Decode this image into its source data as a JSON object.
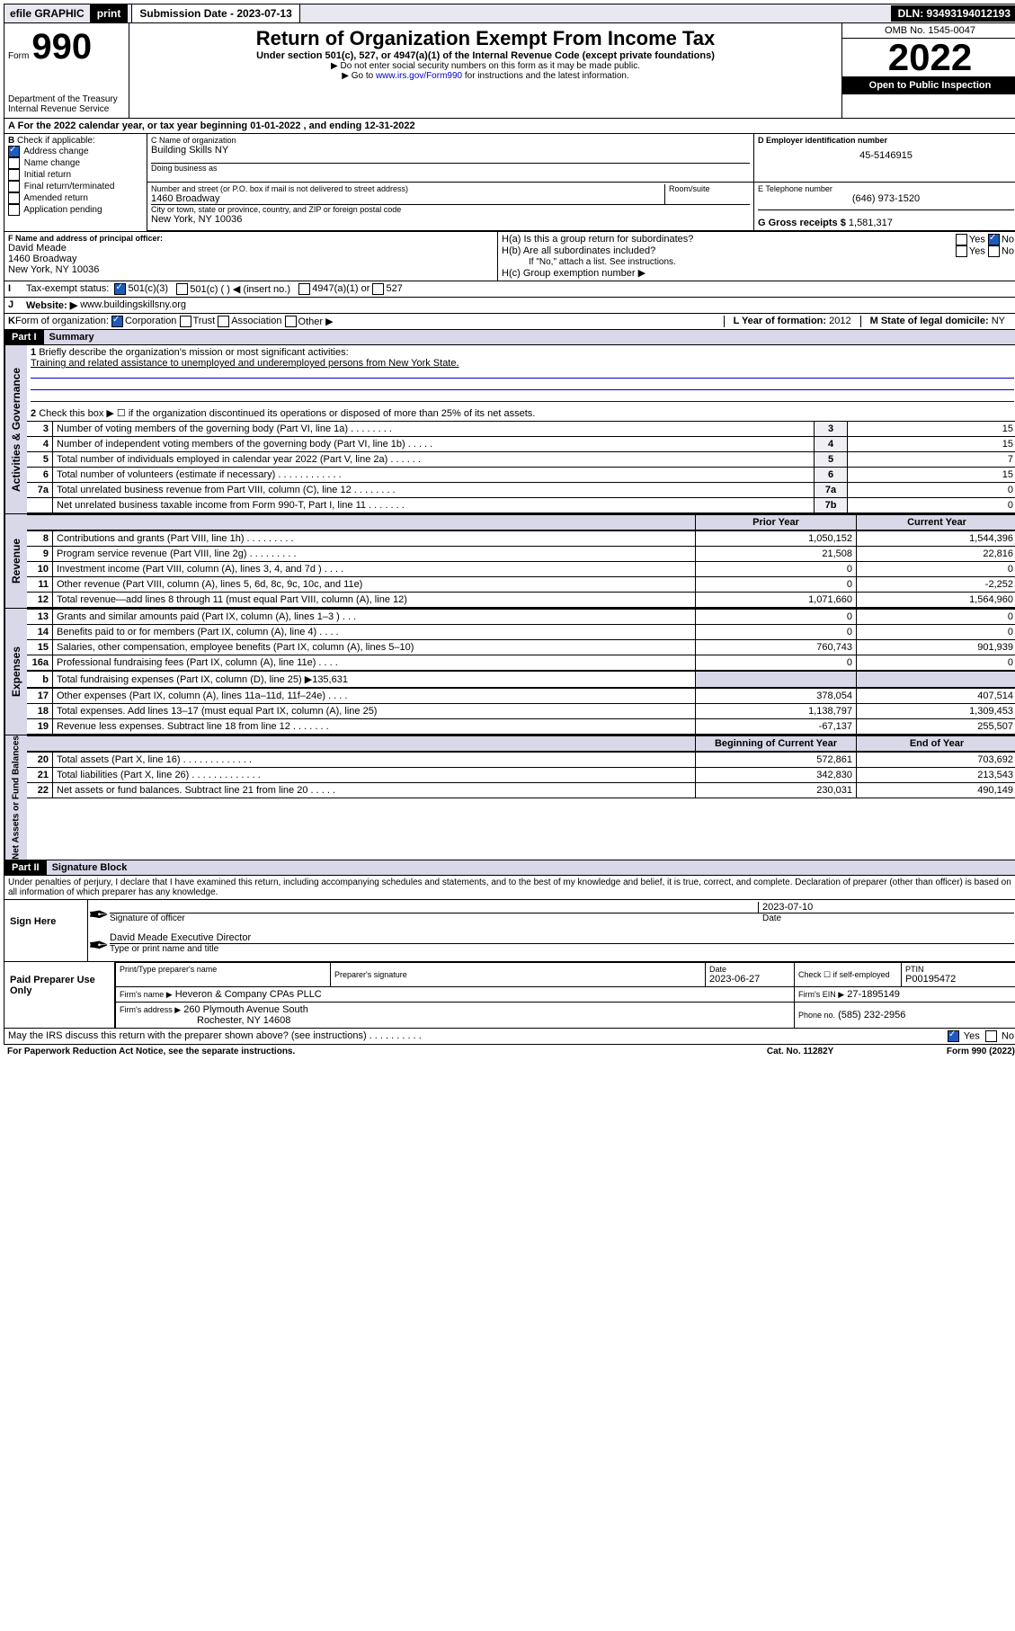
{
  "topbar": {
    "efile": "efile GRAPHIC",
    "print": "print",
    "subdate_label": "Submission Date - 2023-07-13",
    "dln_label": "DLN: 93493194012193"
  },
  "header": {
    "form_prefix": "Form",
    "form_no": "990",
    "title": "Return of Organization Exempt From Income Tax",
    "sub1": "Under section 501(c), 527, or 4947(a)(1) of the Internal Revenue Code (except private foundations)",
    "sub2": "▶ Do not enter social security numbers on this form as it may be made public.",
    "sub3_pre": "▶ Go to ",
    "sub3_link": "www.irs.gov/Form990",
    "sub3_post": " for instructions and the latest information.",
    "dept": "Department of the Treasury",
    "irs": "Internal Revenue Service",
    "omb": "OMB No. 1545-0047",
    "year": "2022",
    "open": "Open to Public Inspection"
  },
  "line_a": "For the 2022 calendar year, or tax year beginning 01-01-2022    , and ending 12-31-2022",
  "b_checks": {
    "title": "Check if applicable:",
    "addr": "Address change",
    "name": "Name change",
    "init": "Initial return",
    "final": "Final return/terminated",
    "amend": "Amended return",
    "app": "Application pending"
  },
  "c": {
    "label": "C Name of organization",
    "org": "Building Skills NY",
    "dba": "Doing business as",
    "addr_label": "Number and street (or P.O. box if mail is not delivered to street address)",
    "room": "Room/suite",
    "addr": "1460 Broadway",
    "city_label": "City or town, state or province, country, and ZIP or foreign postal code",
    "city": "New York, NY  10036"
  },
  "d": {
    "label": "D Employer identification number",
    "ein": "45-5146915"
  },
  "e": {
    "label": "E Telephone number",
    "phone": "(646) 973-1520"
  },
  "g": {
    "label": "G Gross receipts $",
    "amt": "1,581,317"
  },
  "f": {
    "label": "F  Name and address of principal officer:",
    "name": "David Meade",
    "addr1": "1460 Broadway",
    "addr2": "New York, NY  10036"
  },
  "h": {
    "a": "H(a)  Is this a group return for subordinates?",
    "b": "H(b)  Are all subordinates included?",
    "b_note": "If \"No,\" attach a list. See instructions.",
    "c": "H(c)  Group exemption number ▶",
    "yes": "Yes",
    "no": "No"
  },
  "i": {
    "label": "Tax-exempt status:",
    "c3": "501(c)(3)",
    "c": "501(c) (  ) ◀ (insert no.)",
    "a1": "4947(a)(1) or",
    "s527": "527"
  },
  "j": {
    "label": "Website: ▶",
    "url": "www.buildingskillsny.org"
  },
  "k": {
    "label": "Form of organization:",
    "corp": "Corporation",
    "trust": "Trust",
    "assoc": "Association",
    "other": "Other ▶"
  },
  "l": {
    "label": "L Year of formation:",
    "val": "2012"
  },
  "m": {
    "label": "M State of legal domicile:",
    "val": "NY"
  },
  "part1": {
    "hdr": "Part I",
    "title": "Summary",
    "l1_label": "Briefly describe the organization's mission or most significant activities:",
    "l1_text": "Training and related assistance to unemployed and underemployed persons from New York State.",
    "l2": "Check this box ▶ ☐  if the organization discontinued its operations or disposed of more than 25% of its net assets.",
    "rows_gov": [
      {
        "n": "3",
        "d": "Number of voting members of the governing body (Part VI, line 1a)   .    .    .    .    .    .    .    .",
        "i": "3",
        "v": "15"
      },
      {
        "n": "4",
        "d": "Number of independent voting members of the governing body (Part VI, line 1b)   .    .    .    .    .",
        "i": "4",
        "v": "15"
      },
      {
        "n": "5",
        "d": "Total number of individuals employed in calendar year 2022 (Part V, line 2a)   .    .    .    .    .    .",
        "i": "5",
        "v": "7"
      },
      {
        "n": "6",
        "d": "Total number of volunteers (estimate if necessary)   .    .    .    .    .    .    .    .    .    .    .    .",
        "i": "6",
        "v": "15"
      },
      {
        "n": "7a",
        "d": "Total unrelated business revenue from Part VIII, column (C), line 12   .    .    .    .    .    .    .    .",
        "i": "7a",
        "v": "0"
      },
      {
        "n": "",
        "d": "Net unrelated business taxable income from Form 990-T, Part I, line 11   .    .    .    .    .    .    .",
        "i": "7b",
        "v": "0"
      }
    ],
    "col_prior": "Prior Year",
    "col_curr": "Current Year",
    "rows_rev": [
      {
        "n": "8",
        "d": "Contributions and grants (Part VIII, line 1h)   .    .    .    .    .    .    .    .    .",
        "p": "1,050,152",
        "c": "1,544,396"
      },
      {
        "n": "9",
        "d": "Program service revenue (Part VIII, line 2g)   .    .    .    .    .    .    .    .    .",
        "p": "21,508",
        "c": "22,816"
      },
      {
        "n": "10",
        "d": "Investment income (Part VIII, column (A), lines 3, 4, and 7d )   .    .    .    .",
        "p": "0",
        "c": "0"
      },
      {
        "n": "11",
        "d": "Other revenue (Part VIII, column (A), lines 5, 6d, 8c, 9c, 10c, and 11e)",
        "p": "0",
        "c": "-2,252"
      },
      {
        "n": "12",
        "d": "Total revenue—add lines 8 through 11 (must equal Part VIII, column (A), line 12)",
        "p": "1,071,660",
        "c": "1,564,960"
      }
    ],
    "rows_exp": [
      {
        "n": "13",
        "d": "Grants and similar amounts paid (Part IX, column (A), lines 1–3 )   .    .    .",
        "p": "0",
        "c": "0"
      },
      {
        "n": "14",
        "d": "Benefits paid to or for members (Part IX, column (A), line 4)   .    .    .    .",
        "p": "0",
        "c": "0"
      },
      {
        "n": "15",
        "d": "Salaries, other compensation, employee benefits (Part IX, column (A), lines 5–10)",
        "p": "760,743",
        "c": "901,939"
      },
      {
        "n": "16a",
        "d": "Professional fundraising fees (Part IX, column (A), line 11e)   .    .    .    .",
        "p": "0",
        "c": "0"
      }
    ],
    "l16b": "Total fundraising expenses (Part IX, column (D), line 25) ▶135,631",
    "rows_exp2": [
      {
        "n": "17",
        "d": "Other expenses (Part IX, column (A), lines 11a–11d, 11f–24e)   .    .    .    .",
        "p": "378,054",
        "c": "407,514"
      },
      {
        "n": "18",
        "d": "Total expenses. Add lines 13–17 (must equal Part IX, column (A), line 25)",
        "p": "1,138,797",
        "c": "1,309,453"
      },
      {
        "n": "19",
        "d": "Revenue less expenses. Subtract line 18 from line 12   .    .    .    .    .    .    .",
        "p": "-67,137",
        "c": "255,507"
      }
    ],
    "col_beg": "Beginning of Current Year",
    "col_end": "End of Year",
    "rows_net": [
      {
        "n": "20",
        "d": "Total assets (Part X, line 16)   .    .    .    .    .    .    .    .    .    .    .    .    .",
        "p": "572,861",
        "c": "703,692"
      },
      {
        "n": "21",
        "d": "Total liabilities (Part X, line 26)   .    .    .    .    .    .    .    .    .    .    .    .    .",
        "p": "342,830",
        "c": "213,543"
      },
      {
        "n": "22",
        "d": "Net assets or fund balances. Subtract line 21 from line 20   .    .    .    .    .",
        "p": "230,031",
        "c": "490,149"
      }
    ],
    "vtab_gov": "Activities & Governance",
    "vtab_rev": "Revenue",
    "vtab_exp": "Expenses",
    "vtab_net": "Net Assets or Fund Balances"
  },
  "part2": {
    "hdr": "Part II",
    "title": "Signature Block",
    "decl": "Under penalties of perjury, I declare that I have examined this return, including accompanying schedules and statements, and to the best of my knowledge and belief, it is true, correct, and complete. Declaration of preparer (other than officer) is based on all information of which preparer has any knowledge.",
    "sign_here": "Sign Here",
    "sig_officer": "Signature of officer",
    "sig_date": "Date",
    "sig_date_val": "2023-07-10",
    "officer_name": "David Meade  Executive Director",
    "officer_sub": "Type or print name and title",
    "paid": "Paid Preparer Use Only",
    "p_name_lbl": "Print/Type preparer's name",
    "p_sig_lbl": "Preparer's signature",
    "p_date_lbl": "Date",
    "p_date_val": "2023-06-27",
    "p_self": "Check ☐ if self-employed",
    "ptin_lbl": "PTIN",
    "ptin": "P00195472",
    "firm_name_lbl": "Firm's name    ▶",
    "firm_name": "Heveron & Company CPAs PLLC",
    "firm_ein_lbl": "Firm's EIN ▶",
    "firm_ein": "27-1895149",
    "firm_addr_lbl": "Firm's address ▶",
    "firm_addr1": "260 Plymouth Avenue South",
    "firm_addr2": "Rochester, NY  14608",
    "firm_phone_lbl": "Phone no.",
    "firm_phone": "(585) 232-2956",
    "may_irs": "May the IRS discuss this return with the preparer shown above? (see instructions)   .    .    .    .    .    .    .    .    .    .",
    "yes": "Yes",
    "no": "No"
  },
  "footer": {
    "pra": "For Paperwork Reduction Act Notice, see the separate instructions.",
    "cat": "Cat. No. 11282Y",
    "form": "Form 990 (2022)"
  }
}
